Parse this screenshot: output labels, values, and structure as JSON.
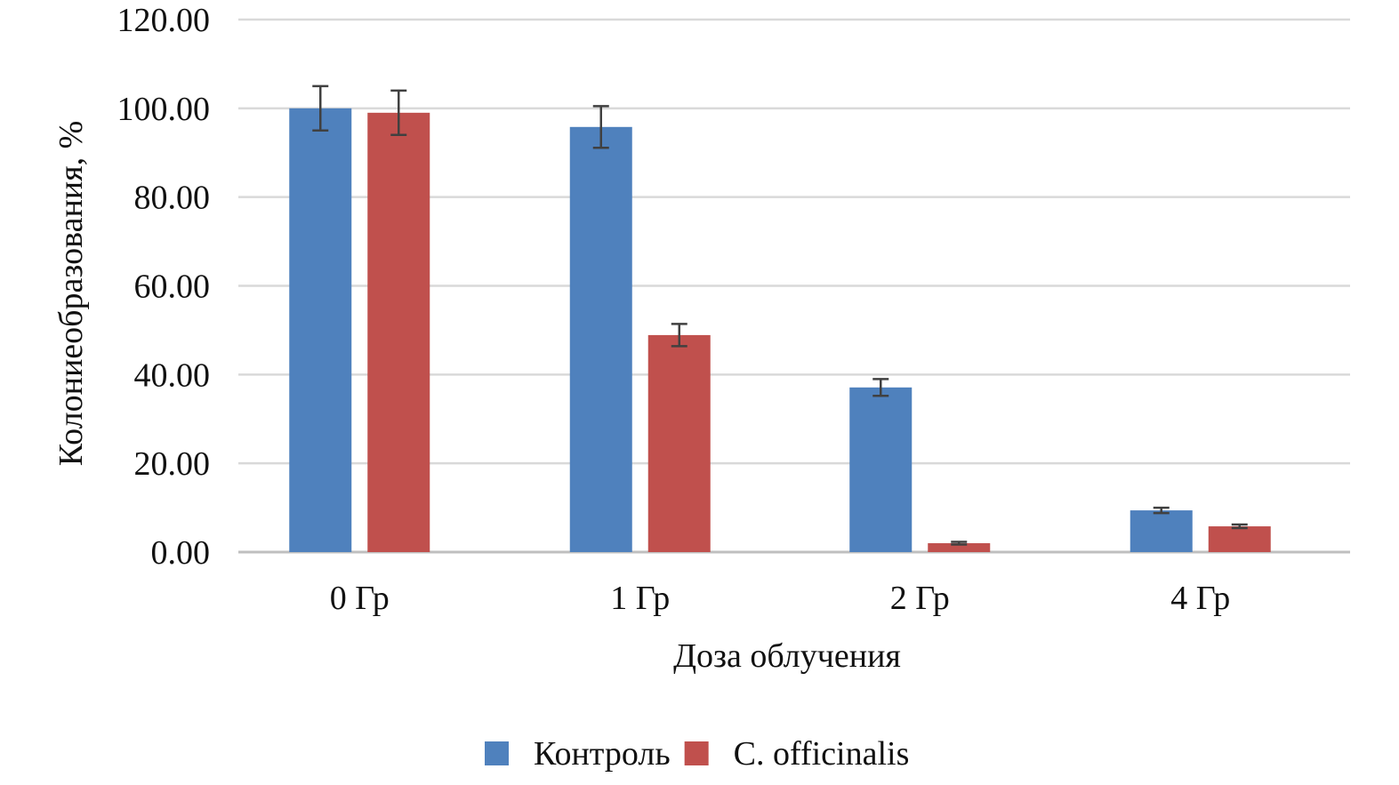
{
  "chart_data": {
    "type": "bar",
    "title": "",
    "xlabel": "Доза облучения",
    "ylabel": "Колониеобразования, %",
    "ylim": [
      0,
      120
    ],
    "yticks": [
      "0.00",
      "20.00",
      "40.00",
      "60.00",
      "80.00",
      "100.00",
      "120.00"
    ],
    "ytick_values": [
      0,
      20,
      40,
      60,
      80,
      100,
      120
    ],
    "grid": true,
    "legend_position": "bottom",
    "categories": [
      "0 Гр",
      "1 Гр",
      "2 Гр",
      "4 Гр"
    ],
    "series": [
      {
        "name": "Контроль",
        "color": "#4F81BD",
        "values": [
          100.0,
          95.8,
          37.1,
          9.4
        ],
        "errors": [
          5.0,
          4.7,
          1.9,
          0.6
        ]
      },
      {
        "name": "C. officinalis",
        "color": "#C0504D",
        "values": [
          99.0,
          48.9,
          2.0,
          5.8
        ],
        "errors": [
          5.0,
          2.5,
          0.3,
          0.4
        ]
      }
    ]
  }
}
